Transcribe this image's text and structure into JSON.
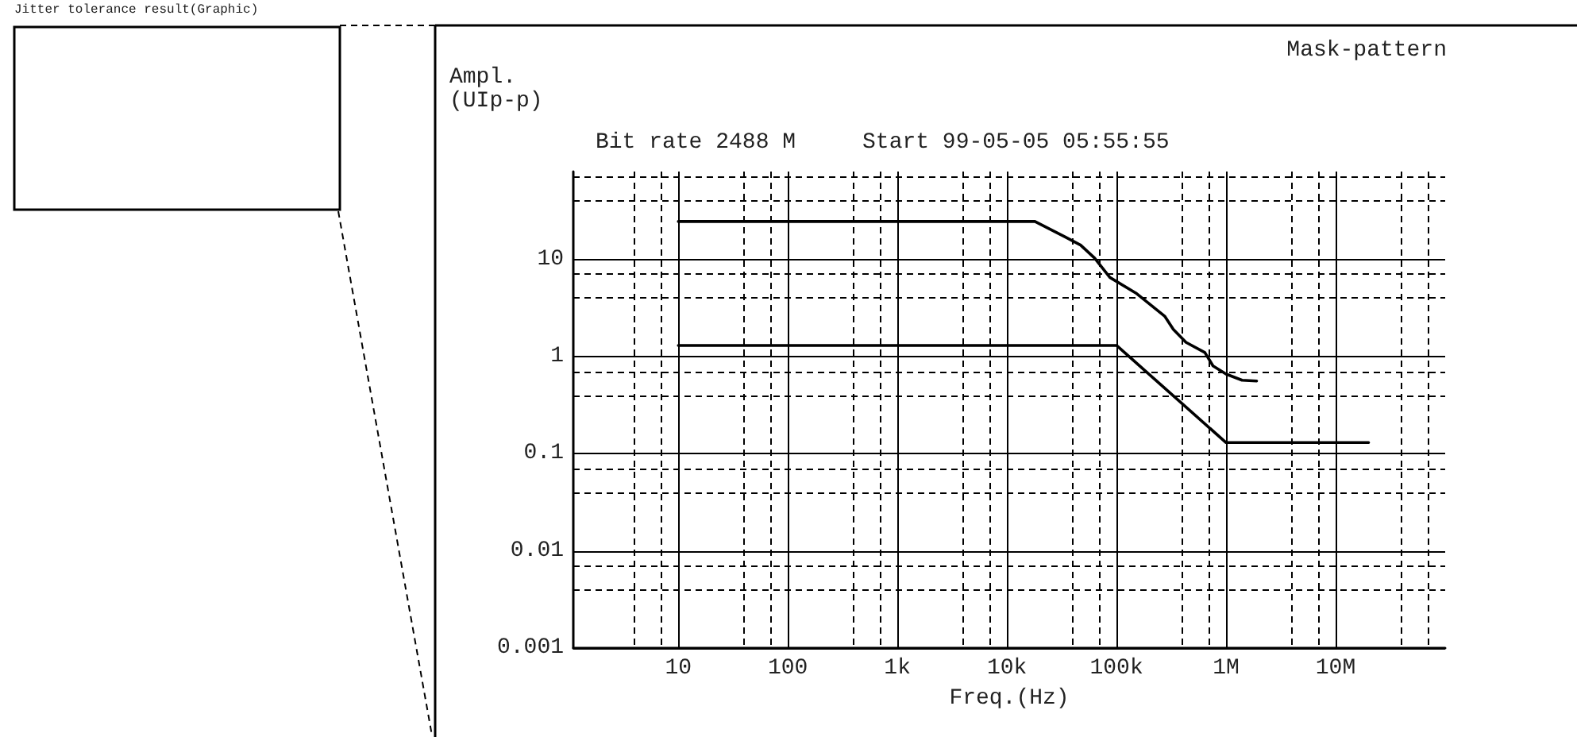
{
  "chart_data": {
    "type": "line",
    "title": "Jitter tolerance result(Graphic)",
    "subtitle": "Bit rate 2488 M     Start 99-05-05 05:55:55",
    "annotations": [
      "Mask-pattern"
    ],
    "xlabel": "Freq.(Hz)",
    "ylabel": "Ampl.\n(UIp-p)",
    "log": "xy",
    "grid": true,
    "marker": "none",
    "line_style": "solid",
    "xlim": [
      1.1,
      100000000
    ],
    "ylim": [
      0.001,
      80
    ],
    "xticks": [
      {
        "value": 10,
        "label": "10"
      },
      {
        "value": 100,
        "label": "100"
      },
      {
        "value": 1000,
        "label": "1k"
      },
      {
        "value": 10000,
        "label": "10k"
      },
      {
        "value": 100000,
        "label": "100k"
      },
      {
        "value": 1000000,
        "label": "1M"
      },
      {
        "value": 10000000,
        "label": "10M"
      }
    ],
    "yticks": [
      0.001,
      0.01,
      0.1,
      1,
      10
    ],
    "series": [
      {
        "color": "#000000",
        "x": [
          10,
          18000,
          34000,
          47000,
          63000,
          87000,
          150000,
          275000,
          330000,
          430000,
          640000,
          760000,
          1000000,
          1400000,
          1900000
        ],
        "values": [
          24.5,
          24.5,
          17,
          14,
          10.3,
          6.5,
          4.5,
          2.6,
          1.9,
          1.4,
          1.1,
          0.8,
          0.66,
          0.57,
          0.56
        ]
      },
      {
        "color": "#000000",
        "x": [
          10,
          100000,
          1000000,
          20000000
        ],
        "values": [
          1.3,
          1.3,
          0.13,
          0.13
        ]
      }
    ]
  }
}
